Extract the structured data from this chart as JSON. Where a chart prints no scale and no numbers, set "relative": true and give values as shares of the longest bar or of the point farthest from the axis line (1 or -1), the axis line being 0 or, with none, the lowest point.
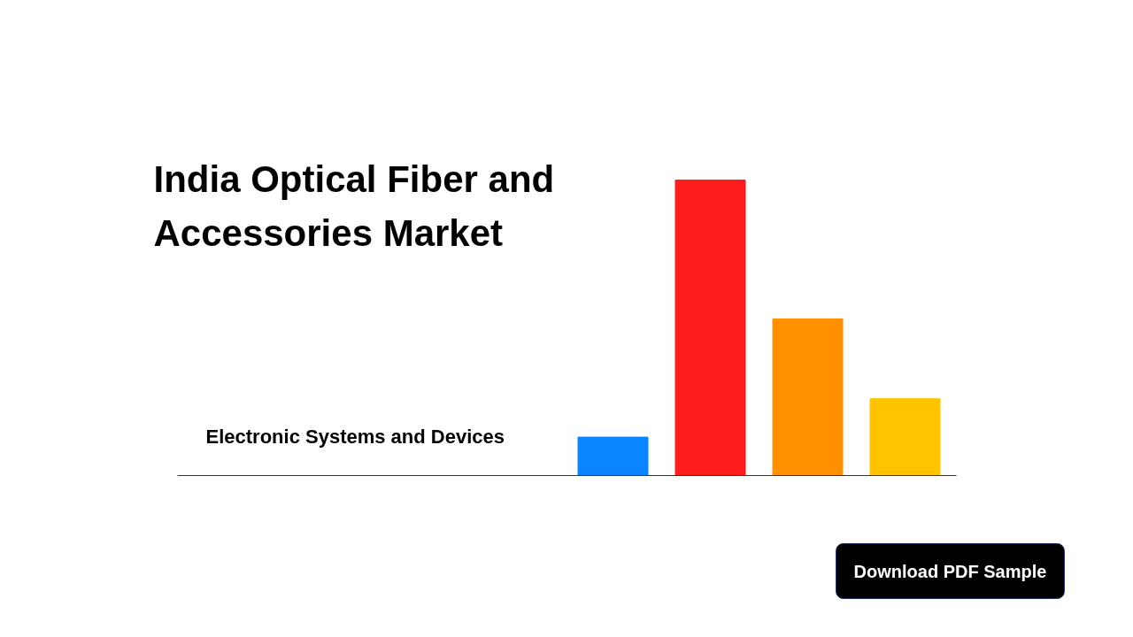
{
  "chart_data": {
    "type": "bar",
    "title": "India Optical Fiber and Accessories Market",
    "subtitle": "Electronic Systems and Devices",
    "categories": [
      null,
      null,
      null,
      null
    ],
    "relative": true,
    "values": [
      0.13,
      1,
      0.53,
      0.26
    ],
    "colors": [
      "#0a84ff",
      "#ff1c1c",
      "#ff9000",
      "#ffc300"
    ],
    "grid": false,
    "annotations": [
      "Download PDF Sample"
    ]
  }
}
